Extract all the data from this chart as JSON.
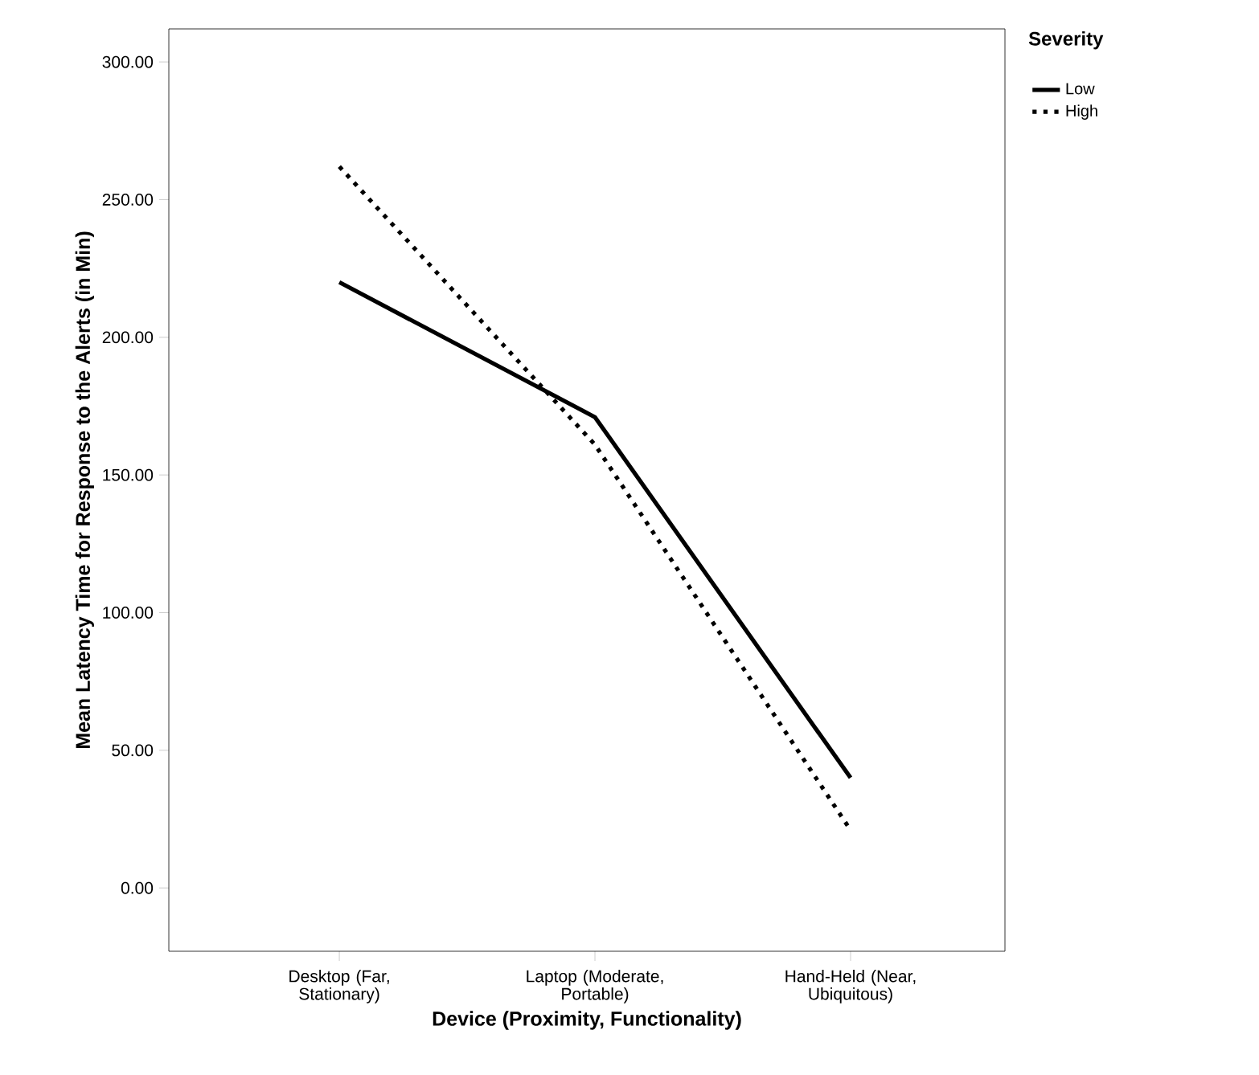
{
  "chart_data": {
    "type": "line",
    "xlabel": "Device (Proximity, Functionality)",
    "ylabel": "Mean Latency Time for Response to the Alerts (in Min)",
    "legend_title": "Severity",
    "legend": "right",
    "categories": [
      "Desktop (Far, Stationary)",
      "Laptop (Moderate, Portable)",
      "Hand-Held (Near, Ubiquitous)"
    ],
    "ylim": [
      -23,
      312
    ],
    "yticks": [
      {
        "value": 0,
        "label": "0.00"
      },
      {
        "value": 50,
        "label": "50.00"
      },
      {
        "value": 100,
        "label": "100.00"
      },
      {
        "value": 150,
        "label": "150.00"
      },
      {
        "value": 200,
        "label": "200.00"
      },
      {
        "value": 250,
        "label": "250.00"
      },
      {
        "value": 300,
        "label": "300.00"
      }
    ],
    "grid": false,
    "series": [
      {
        "name": "Low",
        "color": "#000000",
        "line_style": "solid",
        "values": [
          220,
          171,
          40
        ]
      },
      {
        "name": "High",
        "color": "#000000",
        "line_style": "dotted",
        "values": [
          262,
          161,
          21
        ]
      }
    ]
  }
}
